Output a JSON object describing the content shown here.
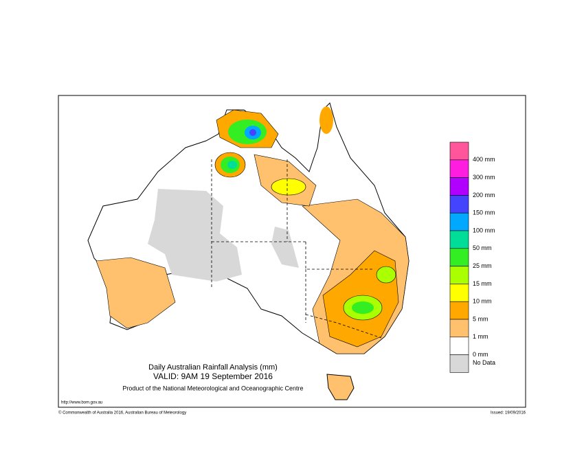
{
  "map": {
    "title": "Daily Australian Rainfall Analysis (mm)",
    "valid": "VALID: 9AM 19 September 2016",
    "product": "Product of the National Meteorological and Oceanographic Centre",
    "url": "http://www.bom.gov.au",
    "copyright": "© Commonwealth of Australia 2016, Australian Bureau of Meteorology",
    "issued": "Issued: 19/09/2016",
    "legend": [
      {
        "color": "#ff559a",
        "label": "400 mm"
      },
      {
        "color": "#ff1ee0",
        "label": "300 mm"
      },
      {
        "color": "#b000ff",
        "label": "200 mm"
      },
      {
        "color": "#4444ff",
        "label": "150 mm"
      },
      {
        "color": "#00a8ff",
        "label": "100 mm"
      },
      {
        "color": "#00dd99",
        "label": "50 mm"
      },
      {
        "color": "#33ee22",
        "label": "25 mm"
      },
      {
        "color": "#aaff00",
        "label": "15 mm"
      },
      {
        "color": "#ffff00",
        "label": "10 mm"
      },
      {
        "color": "#ffa800",
        "label": "5 mm"
      },
      {
        "color": "#ffc16e",
        "label": "1 mm"
      },
      {
        "color": "#ffffff",
        "label": "0 mm"
      },
      {
        "color": "#d8d8d8",
        "label": "No Data"
      }
    ]
  }
}
